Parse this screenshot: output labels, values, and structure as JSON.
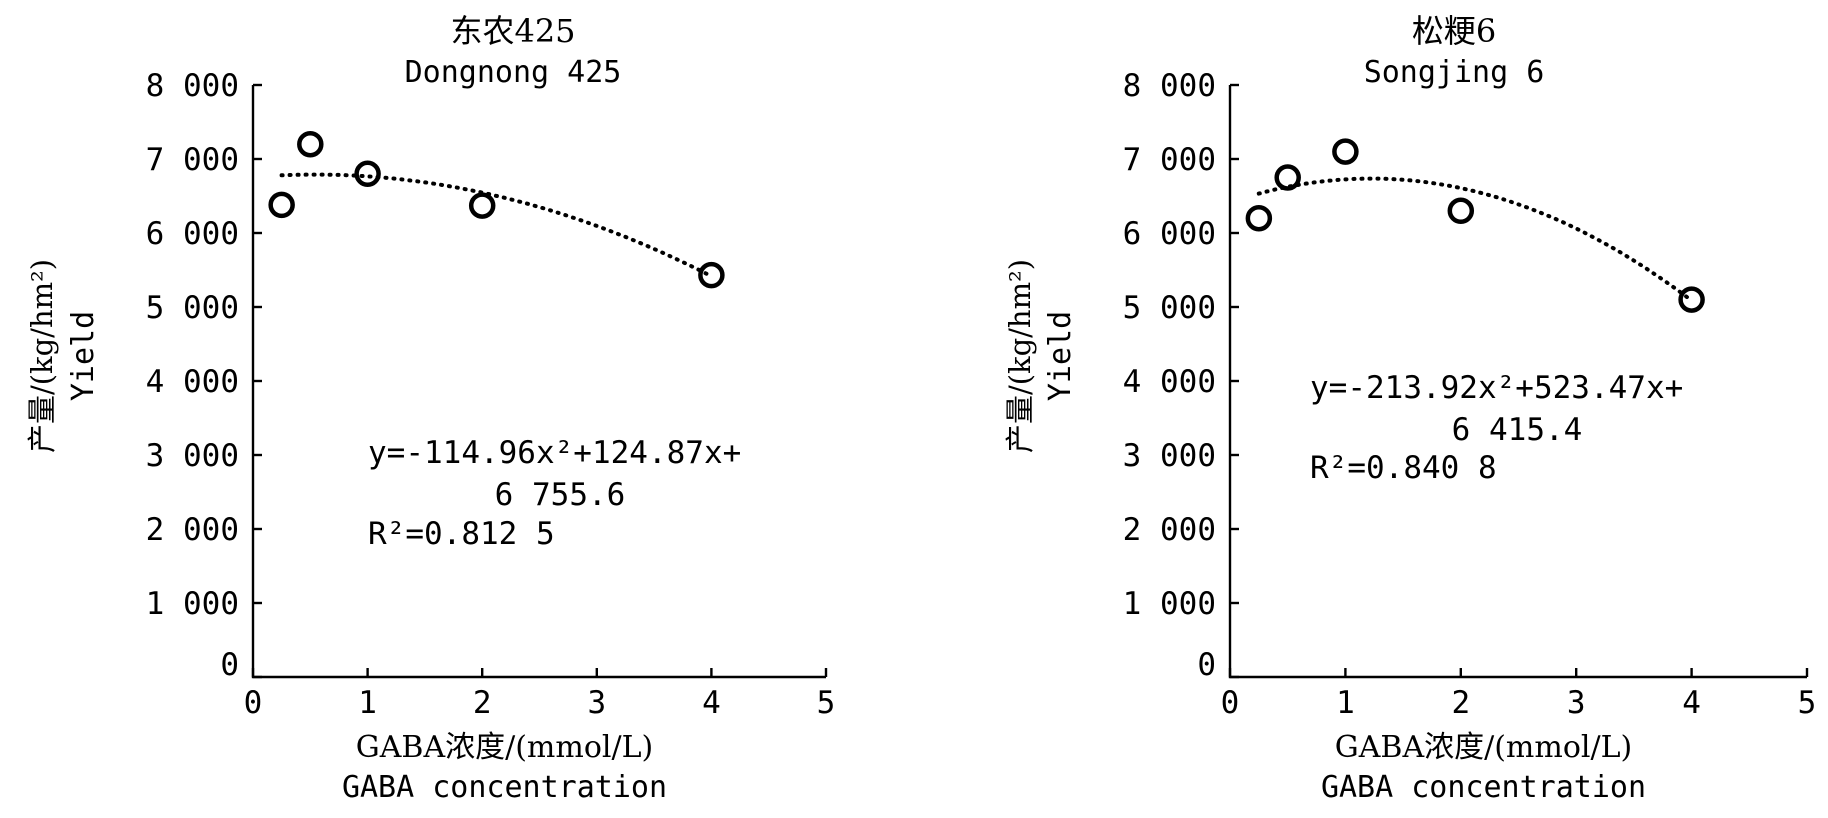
{
  "chart_data": [
    {
      "type": "scatter",
      "title": "东农425",
      "subtitle": "Dongnong 425",
      "ylabel_cn": "产量/(kg/hm²)",
      "ylabel_en": "Yield",
      "xlabel_cn": "GABA浓度/(mmol/L)",
      "xlabel_en": "GABA concentration",
      "xlim": [
        0,
        5
      ],
      "ylim": [
        0,
        8000
      ],
      "x_tick_labels": [
        "0",
        "1",
        "2",
        "3",
        "4",
        "5"
      ],
      "y_tick_labels": [
        "0",
        "1 000",
        "2 000",
        "3 000",
        "4 000",
        "5 000",
        "6 000",
        "7 000",
        "8 000"
      ],
      "points": [
        {
          "x": 0.25,
          "y": 6380
        },
        {
          "x": 0.5,
          "y": 7200
        },
        {
          "x": 1,
          "y": 6800
        },
        {
          "x": 2,
          "y": 6370
        },
        {
          "x": 4,
          "y": 5430
        }
      ],
      "trendline": {
        "a": -114.96,
        "b": 124.87,
        "c": 6755.6
      },
      "equation_line1": "y=-114.96x²+124.87x+",
      "equation_line2": "6 755.6",
      "r2_text": "R²=0.812 5",
      "grid": false,
      "legend": "none"
    },
    {
      "type": "scatter",
      "title": "松粳6",
      "subtitle": "Songjing 6",
      "ylabel_cn": "产量/(kg/hm²)",
      "ylabel_en": "Yield",
      "xlabel_cn": "GABA浓度/(mmol/L)",
      "xlabel_en": "GABA concentration",
      "xlim": [
        0,
        5
      ],
      "ylim": [
        0,
        8000
      ],
      "x_tick_labels": [
        "0",
        "1",
        "2",
        "3",
        "4",
        "5"
      ],
      "y_tick_labels": [
        "0",
        "1 000",
        "2 000",
        "3 000",
        "4 000",
        "5 000",
        "6 000",
        "7 000",
        "8 000"
      ],
      "points": [
        {
          "x": 0.25,
          "y": 6200
        },
        {
          "x": 0.5,
          "y": 6750
        },
        {
          "x": 1,
          "y": 7100
        },
        {
          "x": 2,
          "y": 6300
        },
        {
          "x": 4,
          "y": 5100
        }
      ],
      "trendline": {
        "a": -213.92,
        "b": 523.47,
        "c": 6415.4
      },
      "equation_line1": "y=-213.92x²+523.47x+",
      "equation_line2": "6 415.4",
      "r2_text": "R²=0.840 8",
      "grid": false,
      "legend": "none"
    }
  ]
}
